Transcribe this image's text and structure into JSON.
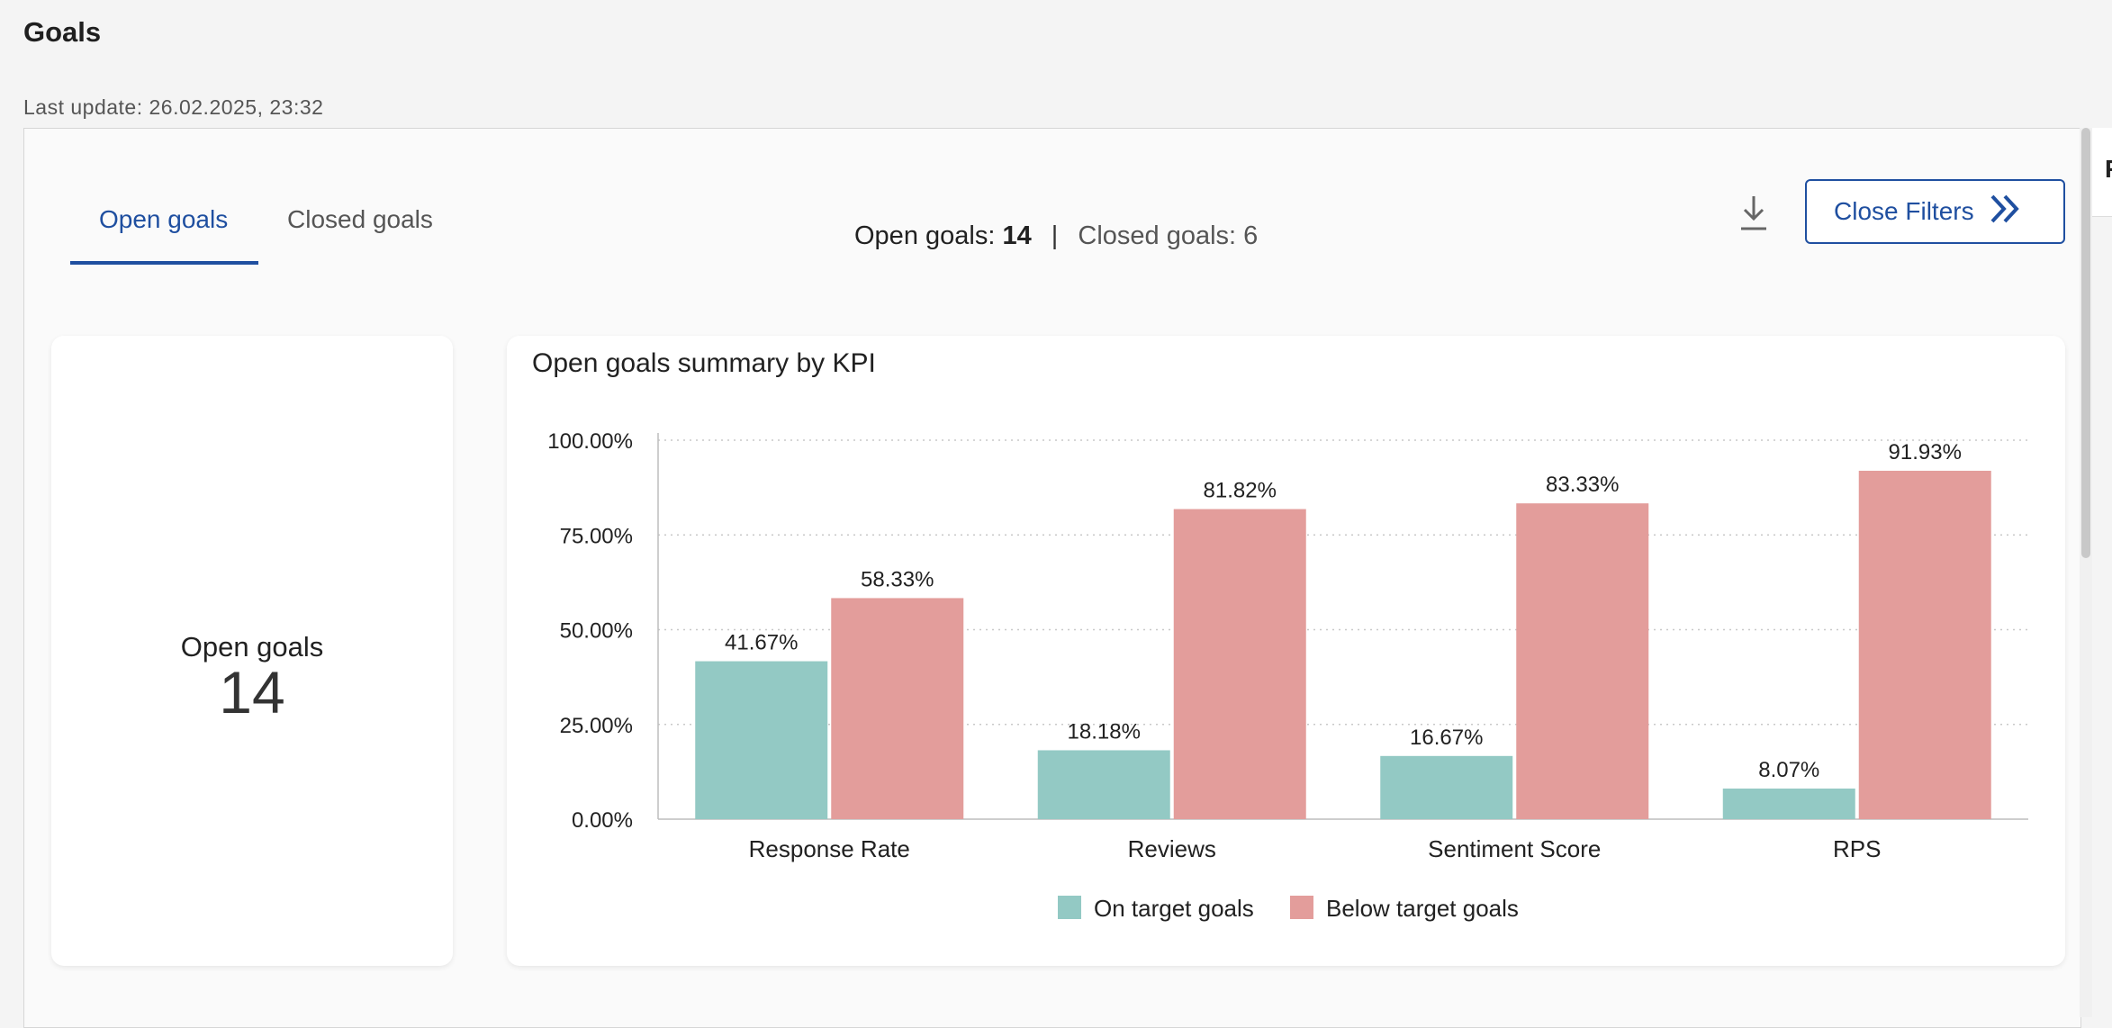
{
  "page": {
    "title": "Goals",
    "last_update": "Last update: 26.02.2025, 23:32"
  },
  "tabs": [
    {
      "label": "Open goals",
      "active": true
    },
    {
      "label": "Closed goals",
      "active": false
    }
  ],
  "counts": {
    "open_label": "Open goals:",
    "open_value": "14",
    "separator": "|",
    "closed_label": "Closed goals:",
    "closed_value": "6"
  },
  "toolbar": {
    "download_icon": "download-icon",
    "close_filters_label": "Close Filters",
    "close_filters_icon": "double-chevron-right-icon"
  },
  "right_edge_text": "F",
  "summary_card": {
    "label": "Open goals",
    "value": "14"
  },
  "colors": {
    "accent": "#1f4fa0",
    "on_target": "#93c9c4",
    "below_target": "#e39d9b"
  },
  "chart_data": {
    "type": "bar",
    "title": "Open goals summary by KPI",
    "categories": [
      "Response Rate",
      "Reviews",
      "Sentiment Score",
      "RPS"
    ],
    "series": [
      {
        "name": "On target goals",
        "values": [
          41.67,
          18.18,
          16.67,
          8.07
        ],
        "labels": [
          "41.67%",
          "18.18%",
          "16.67%",
          "8.07%"
        ],
        "color": "#93c9c4"
      },
      {
        "name": "Below target goals",
        "values": [
          58.33,
          81.82,
          83.33,
          91.93
        ],
        "labels": [
          "58.33%",
          "81.82%",
          "83.33%",
          "91.93%"
        ],
        "color": "#e39d9b"
      }
    ],
    "ylim": [
      0,
      100
    ],
    "yticks": [
      "0.00%",
      "25.00%",
      "50.00%",
      "75.00%",
      "100.00%"
    ],
    "grid": true,
    "legend": "bottom-center"
  }
}
